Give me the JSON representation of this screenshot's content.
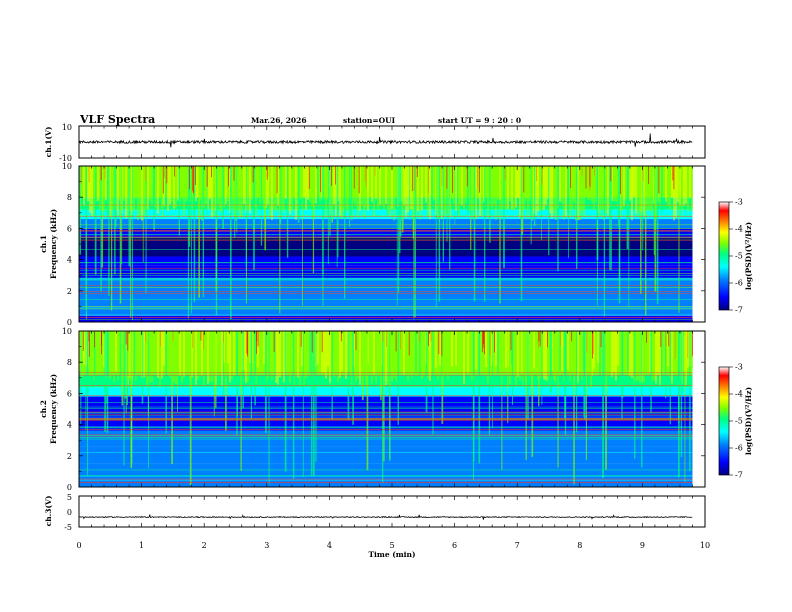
{
  "header": {
    "title": "VLF Spectra",
    "date": "Mar.26, 2026",
    "station": "station=OUI",
    "start_ut": "start UT =  9 : 20 : 0"
  },
  "chart_data": [
    {
      "type": "line",
      "name": "ch1-waveform",
      "ylabel": "ch.1(V)",
      "ylim": [
        -10,
        10
      ],
      "yticks": [
        "10",
        "-10"
      ],
      "baseline": 0,
      "xlim": [
        0,
        10
      ],
      "data_end_min": 9.8
    },
    {
      "type": "heatmap",
      "name": "ch1-spectrogram",
      "ylabel_line1": "ch.1",
      "ylabel_line2": "Frequency (kHz)",
      "ylim": [
        0,
        10
      ],
      "yticks": [
        "0",
        "2",
        "4",
        "6",
        "8",
        "10"
      ],
      "xlim": [
        0,
        10
      ],
      "data_end_min": 9.8,
      "colorbar": {
        "label": "log(PSD)(V²/Hz)",
        "range": [
          -7,
          -3
        ],
        "ticks": [
          "-3",
          "-4",
          "-5",
          "-6",
          "-7"
        ]
      }
    },
    {
      "type": "heatmap",
      "name": "ch2-spectrogram",
      "ylabel_line1": "ch.2",
      "ylabel_line2": "Frequency (kHz)",
      "ylim": [
        0,
        10
      ],
      "yticks": [
        "0",
        "2",
        "4",
        "6",
        "8",
        "10"
      ],
      "xlim": [
        0,
        10
      ],
      "data_end_min": 9.8,
      "colorbar": {
        "label": "log(PSD)(V²/Hz)",
        "range": [
          -7,
          -3
        ],
        "ticks": [
          "-3",
          "-4",
          "-5",
          "-6",
          "-7"
        ]
      }
    },
    {
      "type": "line",
      "name": "ch3-waveform",
      "ylabel": "ch.3(V)",
      "ylim": [
        -5,
        5
      ],
      "yticks": [
        "5",
        "0",
        "-5"
      ],
      "baseline": -1.8,
      "xlim": [
        0,
        10
      ],
      "data_end_min": 9.8
    }
  ],
  "xaxis": {
    "label": "Time (min)",
    "ticks": [
      "0",
      "1",
      "2",
      "3",
      "4",
      "5",
      "6",
      "7",
      "8",
      "9",
      "10"
    ]
  },
  "colors": {
    "colormap": [
      "#000080",
      "#0000ff",
      "#0080ff",
      "#00ffff",
      "#00ff80",
      "#80ff00",
      "#ffff00",
      "#ff8000",
      "#ff0000",
      "#ffffff"
    ]
  }
}
